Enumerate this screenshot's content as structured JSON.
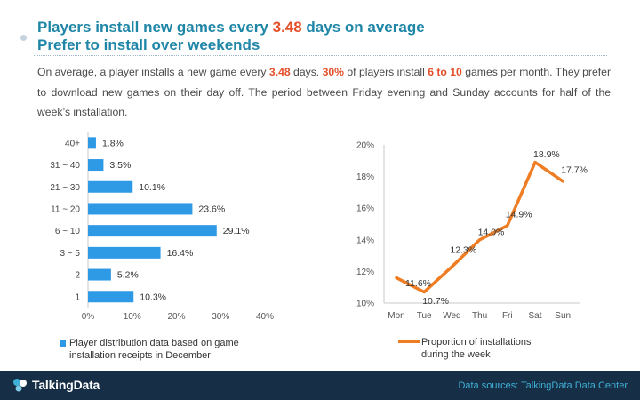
{
  "header": {
    "title_line1_pre": "Players install new games every ",
    "title_line1_hl": "3.48",
    "title_line1_post": " days on average",
    "title_line2": "Prefer to install over weekends"
  },
  "paragraph": {
    "p1": "On average, a player installs a new game every ",
    "h1": "3.48",
    "p2": " days. ",
    "h2": "30%",
    "p3": " of players install ",
    "h3": "6 to 10",
    "p4": " games per month. They prefer to download new games on their day off. The period between Friday evening and Sunday accounts for half of the week’s installation."
  },
  "colors": {
    "title": "#1f86a8",
    "highlight": "#e4502a",
    "bar": "#2e9ae6",
    "line": "#ef7d23",
    "footer": "#162f46"
  },
  "chart_data": [
    {
      "type": "bar",
      "orientation": "horizontal",
      "categories": [
        "40+",
        "31 ~ 40",
        "21 ~ 30",
        "11 ~ 20",
        "6 ~ 10",
        "3 ~ 5",
        "2",
        "1"
      ],
      "values": [
        1.8,
        3.5,
        10.1,
        23.6,
        29.1,
        16.4,
        5.2,
        10.3
      ],
      "value_labels": [
        "1.8%",
        "3.5%",
        "10.1%",
        "23.6%",
        "29.1%",
        "16.4%",
        "5.2%",
        "10.3%"
      ],
      "xlim": [
        0,
        40
      ],
      "x_ticks": [
        "0%",
        "10%",
        "20%",
        "30%",
        "40%"
      ],
      "legend": "Player distribution data based on game installation receipts in December",
      "legend_line1": "Player distribution data based on game",
      "legend_line2": "installation receipts in December",
      "legend_placement": "bottom",
      "grid": false
    },
    {
      "type": "line",
      "x": [
        "Mon",
        "Tue",
        "Wed",
        "Thu",
        "Fri",
        "Sat",
        "Sun"
      ],
      "values": [
        11.6,
        10.7,
        12.3,
        14.0,
        14.9,
        18.9,
        17.7
      ],
      "value_labels": [
        "11.6%",
        "10.7%",
        "12.3%",
        "14.0%",
        "14.9%",
        "18.9%",
        "17.7%"
      ],
      "ylim": [
        10,
        20
      ],
      "y_ticks": [
        "10%",
        "12%",
        "14%",
        "16%",
        "18%",
        "20%"
      ],
      "legend": "Proportion of installations during the week",
      "legend_line1": "Proportion of installations",
      "legend_line2": "during the week",
      "legend_placement": "bottom",
      "grid": false
    }
  ],
  "footer": {
    "brand": "TalkingData",
    "source": "Data sources: TalkingData Data Center"
  }
}
